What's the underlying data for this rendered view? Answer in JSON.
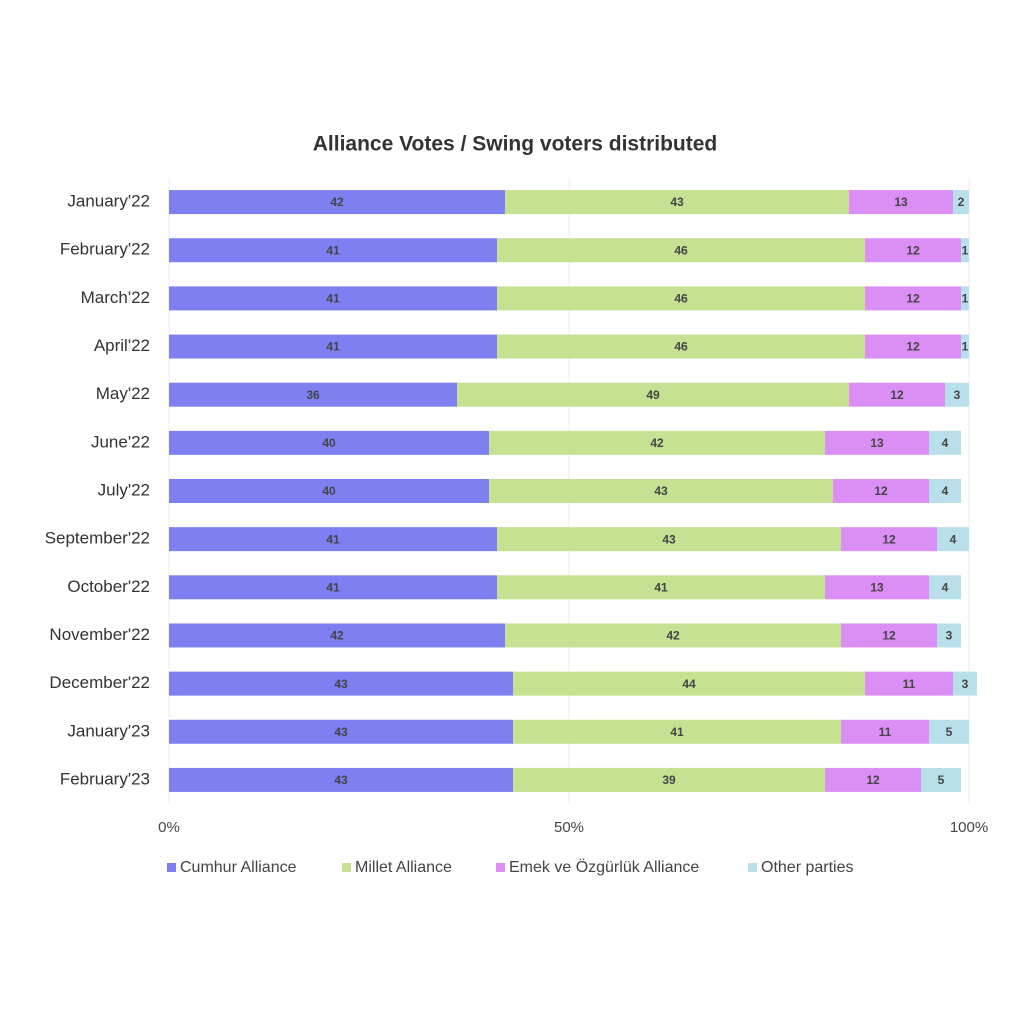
{
  "chart_data": {
    "type": "bar",
    "orientation": "horizontal",
    "stacked": true,
    "title": "Alliance Votes / Swing voters distributed",
    "categories": [
      "January'22",
      "February'22",
      "March'22",
      "April'22",
      "May'22",
      "June'22",
      "July'22",
      "September'22",
      "October'22",
      "November'22",
      "December'22",
      "January'23",
      "February'23"
    ],
    "series": [
      {
        "name": "Cumhur Alliance",
        "color": "#7e80f2",
        "values": [
          42,
          41,
          41,
          41,
          36,
          40,
          40,
          41,
          41,
          42,
          43,
          43,
          43
        ]
      },
      {
        "name": "Millet Alliance",
        "color": "#c6e191",
        "values": [
          43,
          46,
          46,
          46,
          49,
          42,
          43,
          43,
          41,
          42,
          44,
          41,
          39
        ]
      },
      {
        "name": "Emek ve Özgürlük Alliance",
        "color": "#db8ff5",
        "values": [
          13,
          12,
          12,
          12,
          12,
          13,
          12,
          12,
          13,
          12,
          11,
          11,
          12
        ]
      },
      {
        "name": "Other parties",
        "color": "#b9e0ea",
        "values": [
          2,
          1,
          1,
          1,
          3,
          4,
          4,
          4,
          4,
          3,
          3,
          5,
          5
        ]
      }
    ],
    "xlim": [
      0,
      100
    ],
    "xticks": [
      {
        "value": 0,
        "label": "0%"
      },
      {
        "value": 50,
        "label": "50%"
      },
      {
        "value": 100,
        "label": "100%"
      }
    ],
    "grid": true,
    "legend": "bottom"
  }
}
